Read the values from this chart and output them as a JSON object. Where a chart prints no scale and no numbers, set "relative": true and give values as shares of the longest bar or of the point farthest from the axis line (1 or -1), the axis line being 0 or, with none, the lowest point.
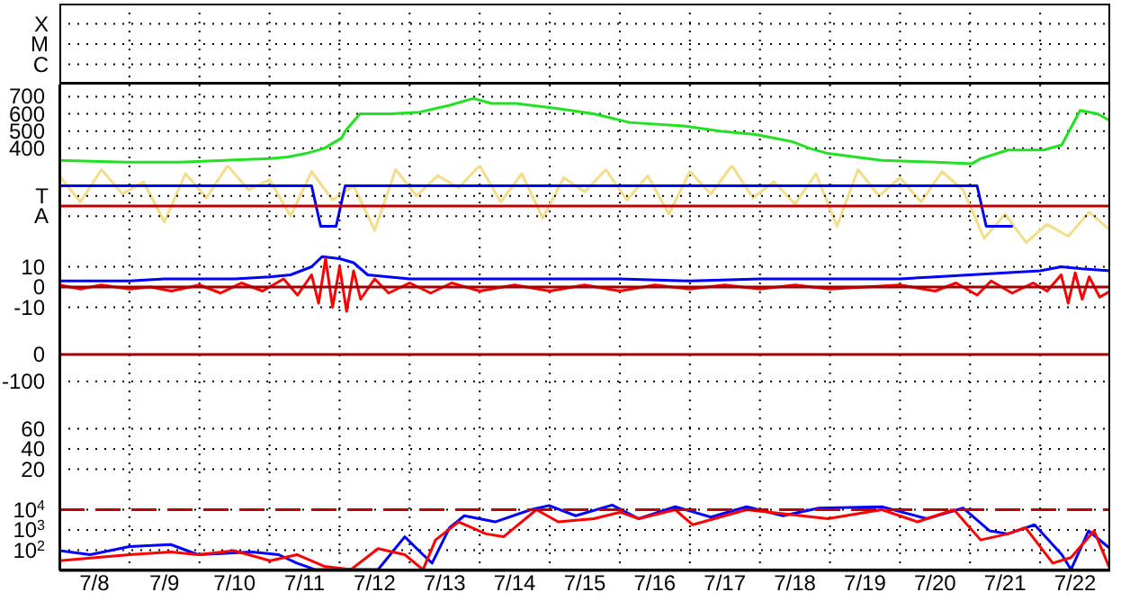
{
  "chart_data": [
    {
      "type": "other",
      "annotations": [
        "X",
        "M",
        "C"
      ]
    },
    {
      "type": "line",
      "xlim": [
        "--07-08",
        "--07-23"
      ],
      "xticks": [
        {
          "value": "--07-08T12:00",
          "label": "7/8"
        },
        {
          "value": "--07-09",
          "label": null
        },
        {
          "value": "--07-09T12:00",
          "label": "7/9"
        },
        {
          "value": "--07-10",
          "label": null
        },
        {
          "value": "--07-10T12:00",
          "label": "7/10"
        },
        {
          "value": "--07-11",
          "label": null
        },
        {
          "value": "--07-11T12:00",
          "label": "7/11"
        },
        {
          "value": "--07-12",
          "label": null
        },
        {
          "value": "--07-12T12:00",
          "label": "7/12"
        },
        {
          "value": "--07-13",
          "label": null
        },
        {
          "value": "--07-13T12:00",
          "label": "7/13"
        },
        {
          "value": "--07-14",
          "label": null
        },
        {
          "value": "--07-14T12:00",
          "label": "7/14"
        },
        {
          "value": "--07-15",
          "label": null
        },
        {
          "value": "--07-15T12:00",
          "label": "7/15"
        },
        {
          "value": "--07-16",
          "label": null
        },
        {
          "value": "--07-16T12:00",
          "label": "7/16"
        },
        {
          "value": "--07-17",
          "label": null
        },
        {
          "value": "--07-17T12:00",
          "label": "7/17"
        },
        {
          "value": "--07-18",
          "label": null
        },
        {
          "value": "--07-18T12:00",
          "label": "7/18"
        },
        {
          "value": "--07-19",
          "label": null
        },
        {
          "value": "--07-19T12:00",
          "label": "7/19"
        },
        {
          "value": "--07-20",
          "label": null
        },
        {
          "value": "--07-20T12:00",
          "label": "7/20"
        },
        {
          "value": "--07-21",
          "label": null
        },
        {
          "value": "--07-21T12:00",
          "label": "7/21"
        },
        {
          "value": "--07-22",
          "label": null
        },
        {
          "value": "--07-22T12:00",
          "label": "7/22"
        }
      ],
      "ylim": [
        300,
        770
      ],
      "yticks": [
        400,
        500,
        600,
        700
      ],
      "grid": true,
      "tick_labels": "y",
      "series": [
        {
          "color": "#22e022",
          "x": [
            "--07-08T00:00",
            "--07-08T22:48",
            "--07-09T17:17",
            "--07-11T00:14",
            "--07-11T06:14",
            "--07-11T12:29",
            "--07-11T18:43",
            "--07-12T00:43",
            "--07-12T01:55",
            "--07-12T06:58",
            "--07-12T17:31",
            "--07-13T03:22",
            "--07-13T13:41",
            "--07-13T21:50",
            "--07-14T04:05",
            "--07-14T12:29",
            "--07-15T02:53",
            "--07-15T15:07",
            "--07-16T03:22",
            "--07-16T21:50",
            "--07-17T10:19",
            "--07-17T22:34",
            "--07-18T10:48",
            "--07-18T17:02",
            "--07-18T23:17",
            "--07-19T17:46",
            "--07-20T12:14",
            "--07-21T00:29",
            "--07-21T03:36",
            "--07-21T12:58",
            "--07-22T01:12",
            "--07-22T07:26",
            "--07-22T13:41",
            "--07-22T19:41",
            "--07-23T00:00"
          ],
          "values": [
            330,
            320,
            320,
            340,
            350,
            370,
            400,
            460,
            500,
            600,
            600,
            610,
            650,
            690,
            660,
            660,
            630,
            600,
            550,
            530,
            500,
            480,
            440,
            400,
            370,
            330,
            320,
            310,
            340,
            390,
            390,
            420,
            620,
            600,
            560
          ]
        }
      ]
    },
    {
      "type": "line",
      "relative": true,
      "annotations": [
        "T",
        "A"
      ],
      "xlim": [
        "--07-08",
        "--07-23"
      ],
      "xticks": [
        {
          "value": "--07-08T12:00",
          "label": "7/8"
        },
        {
          "value": "--07-09",
          "label": null
        },
        {
          "value": "--07-09T12:00",
          "label": "7/9"
        },
        {
          "value": "--07-10",
          "label": null
        },
        {
          "value": "--07-10T12:00",
          "label": "7/10"
        },
        {
          "value": "--07-11",
          "label": null
        },
        {
          "value": "--07-11T12:00",
          "label": "7/11"
        },
        {
          "value": "--07-12",
          "label": null
        },
        {
          "value": "--07-12T12:00",
          "label": "7/12"
        },
        {
          "value": "--07-13",
          "label": null
        },
        {
          "value": "--07-13T12:00",
          "label": "7/13"
        },
        {
          "value": "--07-14",
          "label": null
        },
        {
          "value": "--07-14T12:00",
          "label": "7/14"
        },
        {
          "value": "--07-15",
          "label": null
        },
        {
          "value": "--07-15T12:00",
          "label": "7/15"
        },
        {
          "value": "--07-16",
          "label": null
        },
        {
          "value": "--07-16T12:00",
          "label": "7/16"
        },
        {
          "value": "--07-17",
          "label": null
        },
        {
          "value": "--07-17T12:00",
          "label": "7/17"
        },
        {
          "value": "--07-18",
          "label": null
        },
        {
          "value": "--07-18T12:00",
          "label": "7/18"
        },
        {
          "value": "--07-19",
          "label": null
        },
        {
          "value": "--07-19T12:00",
          "label": "7/19"
        },
        {
          "value": "--07-20",
          "label": null
        },
        {
          "value": "--07-20T12:00",
          "label": "7/20"
        },
        {
          "value": "--07-21",
          "label": null
        },
        {
          "value": "--07-21T12:00",
          "label": "7/21"
        },
        {
          "value": "--07-22",
          "label": null
        },
        {
          "value": "--07-22T12:00",
          "label": "7/22"
        }
      ],
      "grid": "x",
      "tick_labels": false,
      "ref_lines": [
        {
          "axis": "y",
          "value": 0,
          "color": "#c00000"
        }
      ],
      "series": [
        {
          "color": "#f2de8a",
          "x": [
            "--07-08T00:00",
            "--07-08T07:12",
            "--07-08T14:24",
            "--07-08T21:36",
            "--07-09T04:48",
            "--07-09T12:00",
            "--07-09T19:12",
            "--07-10T02:24",
            "--07-10T09:36",
            "--07-10T16:48",
            "--07-11T00:00",
            "--07-11T07:12",
            "--07-11T14:24",
            "--07-11T21:36",
            "--07-12T04:48",
            "--07-12T12:00",
            "--07-12T19:12",
            "--07-13T02:24",
            "--07-13T09:36",
            "--07-13T16:48",
            "--07-14T00:00",
            "--07-14T07:12",
            "--07-14T14:24",
            "--07-14T21:36",
            "--07-15T04:48",
            "--07-15T12:00",
            "--07-15T19:12",
            "--07-16T02:24",
            "--07-16T09:36",
            "--07-16T16:48",
            "--07-17T00:00",
            "--07-17T07:12",
            "--07-17T14:24",
            "--07-17T21:36",
            "--07-18T04:48",
            "--07-18T12:00",
            "--07-18T19:12",
            "--07-19T02:24",
            "--07-19T09:36",
            "--07-19T16:48",
            "--07-20T00:00",
            "--07-20T07:12",
            "--07-20T14:24",
            "--07-20T21:36",
            "--07-21T04:48",
            "--07-21T12:00",
            "--07-21T19:12",
            "--07-22T02:24",
            "--07-22T09:36",
            "--07-22T16:48",
            "--07-23T00:00"
          ],
          "values": [
            0.75,
            0.1,
            0.9,
            0.3,
            0.6,
            -0.4,
            0.8,
            0.2,
            1,
            0.4,
            0.65,
            -0.25,
            0.85,
            0.15,
            0.5,
            -0.6,
            0.9,
            0.25,
            0.75,
            0.45,
            1,
            0.1,
            0.8,
            -0.3,
            0.7,
            0.35,
            0.9,
            0.15,
            0.75,
            -0.2,
            0.85,
            0.3,
            1,
            0.2,
            0.6,
            0.05,
            0.8,
            -0.5,
            0.9,
            0.25,
            0.7,
            0.1,
            0.85,
            0.4,
            -0.8,
            -0.2,
            -0.9,
            -0.45,
            -0.75,
            -0.15,
            -0.6
          ]
        },
        {
          "color": "#0000ff",
          "x": [
            "--07-08T00:00",
            "--07-11T14:24",
            "--07-11T17:31",
            "--07-11T22:48",
            "--07-12T01:55",
            "--07-21T02:24",
            "--07-21T05:31",
            "--07-21T14:38"
          ],
          "values": [
            0.5,
            0.5,
            -0.5,
            -0.5,
            0.5,
            0.5,
            -0.5,
            -0.5
          ]
        }
      ]
    },
    {
      "type": "line",
      "xlim": [
        "--07-08",
        "--07-23"
      ],
      "xticks": [
        {
          "value": "--07-08T12:00",
          "label": "7/8"
        },
        {
          "value": "--07-09",
          "label": null
        },
        {
          "value": "--07-09T12:00",
          "label": "7/9"
        },
        {
          "value": "--07-10",
          "label": null
        },
        {
          "value": "--07-10T12:00",
          "label": "7/10"
        },
        {
          "value": "--07-11",
          "label": null
        },
        {
          "value": "--07-11T12:00",
          "label": "7/11"
        },
        {
          "value": "--07-12",
          "label": null
        },
        {
          "value": "--07-12T12:00",
          "label": "7/12"
        },
        {
          "value": "--07-13",
          "label": null
        },
        {
          "value": "--07-13T12:00",
          "label": "7/13"
        },
        {
          "value": "--07-14",
          "label": null
        },
        {
          "value": "--07-14T12:00",
          "label": "7/14"
        },
        {
          "value": "--07-15",
          "label": null
        },
        {
          "value": "--07-15T12:00",
          "label": "7/15"
        },
        {
          "value": "--07-16",
          "label": null
        },
        {
          "value": "--07-16T12:00",
          "label": "7/16"
        },
        {
          "value": "--07-17",
          "label": null
        },
        {
          "value": "--07-17T12:00",
          "label": "7/17"
        },
        {
          "value": "--07-18",
          "label": null
        },
        {
          "value": "--07-18T12:00",
          "label": "7/18"
        },
        {
          "value": "--07-19",
          "label": null
        },
        {
          "value": "--07-19T12:00",
          "label": "7/19"
        },
        {
          "value": "--07-20",
          "label": null
        },
        {
          "value": "--07-20T12:00",
          "label": "7/20"
        },
        {
          "value": "--07-21",
          "label": null
        },
        {
          "value": "--07-21T12:00",
          "label": "7/21"
        },
        {
          "value": "--07-22",
          "label": null
        },
        {
          "value": "--07-22T12:00",
          "label": "7/22"
        }
      ],
      "ylim": [
        -20,
        20
      ],
      "yticks": [
        10,
        0,
        -10
      ],
      "grid": true,
      "tick_labels": "y",
      "ref_lines": [
        {
          "axis": "y",
          "value": 0,
          "color": "#a00000"
        }
      ],
      "series": [
        {
          "color": "#0000ff",
          "x": [
            "--07-08T00:00",
            "--07-09T00:00",
            "--07-09T12:00",
            "--07-10T00:00",
            "--07-10T12:00",
            "--07-11T00:00",
            "--07-11T07:12",
            "--07-11T14:24",
            "--07-11T18:00",
            "--07-12T00:00",
            "--07-12T04:48",
            "--07-12T09:36",
            "--07-13T00:00",
            "--07-14T00:00",
            "--07-15T00:00",
            "--07-16T00:00",
            "--07-17T00:00",
            "--07-18T00:00",
            "--07-19T00:00",
            "--07-20T00:00",
            "--07-20T12:00",
            "--07-21T00:00",
            "--07-21T12:00",
            "--07-22T00:00",
            "--07-22T07:12",
            "--07-22T14:24",
            "--07-23T00:00"
          ],
          "values": [
            3,
            3,
            4,
            4,
            4,
            5,
            6,
            10,
            15,
            14,
            12,
            6,
            4,
            4,
            4,
            4,
            3,
            4,
            4,
            4,
            5,
            6,
            7,
            8,
            10,
            9,
            8
          ]
        },
        {
          "color": "#ff0000",
          "x": [
            "--07-08T00:00",
            "--07-08T07:12",
            "--07-08T14:24",
            "--07-09T00:00",
            "--07-09T07:12",
            "--07-09T14:24",
            "--07-10T00:00",
            "--07-10T07:12",
            "--07-10T14:24",
            "--07-10T21:36",
            "--07-11T04:48",
            "--07-11T09:36",
            "--07-11T14:24",
            "--07-11T16:48",
            "--07-11T19:12",
            "--07-11T21:36",
            "--07-12T00:00",
            "--07-12T02:24",
            "--07-12T04:48",
            "--07-12T07:12",
            "--07-12T12:00",
            "--07-12T16:48",
            "--07-13T00:00",
            "--07-13T07:12",
            "--07-13T14:24",
            "--07-14T00:00",
            "--07-14T12:00",
            "--07-15T00:00",
            "--07-15T12:00",
            "--07-16T00:00",
            "--07-16T12:00",
            "--07-17T00:00",
            "--07-17T12:00",
            "--07-18T00:00",
            "--07-18T12:00",
            "--07-19T00:00",
            "--07-19T12:00",
            "--07-20T00:00",
            "--07-20T12:00",
            "--07-20T19:12",
            "--07-21T02:24",
            "--07-21T07:12",
            "--07-21T14:24",
            "--07-21T21:36",
            "--07-22T02:24",
            "--07-22T07:12",
            "--07-22T09:36",
            "--07-22T12:00",
            "--07-22T14:24",
            "--07-22T16:48",
            "--07-22T20:24",
            "--07-23T00:00"
          ],
          "values": [
            1,
            -1,
            1,
            -1,
            0,
            -2,
            1,
            -3,
            2,
            -2,
            4,
            -4,
            6,
            -8,
            14,
            -10,
            10,
            -12,
            8,
            -6,
            4,
            -3,
            2,
            -3,
            2,
            -2,
            1,
            -2,
            1,
            -2,
            1,
            -1,
            1,
            -1,
            1,
            -1,
            0,
            1,
            -2,
            2,
            -4,
            3,
            -3,
            2,
            -2,
            6,
            -8,
            7,
            -6,
            5,
            -5,
            -2
          ]
        }
      ]
    },
    {
      "type": "line",
      "xlim": [
        "--07-08",
        "--07-23"
      ],
      "xticks": [
        {
          "value": "--07-08T12:00",
          "label": "7/8"
        },
        {
          "value": "--07-09",
          "label": null
        },
        {
          "value": "--07-09T12:00",
          "label": "7/9"
        },
        {
          "value": "--07-10",
          "label": null
        },
        {
          "value": "--07-10T12:00",
          "label": "7/10"
        },
        {
          "value": "--07-11",
          "label": null
        },
        {
          "value": "--07-11T12:00",
          "label": "7/11"
        },
        {
          "value": "--07-12",
          "label": null
        },
        {
          "value": "--07-12T12:00",
          "label": "7/12"
        },
        {
          "value": "--07-13",
          "label": null
        },
        {
          "value": "--07-13T12:00",
          "label": "7/13"
        },
        {
          "value": "--07-14",
          "label": null
        },
        {
          "value": "--07-14T12:00",
          "label": "7/14"
        },
        {
          "value": "--07-15",
          "label": null
        },
        {
          "value": "--07-15T12:00",
          "label": "7/15"
        },
        {
          "value": "--07-16",
          "label": null
        },
        {
          "value": "--07-16T12:00",
          "label": "7/16"
        },
        {
          "value": "--07-17",
          "label": null
        },
        {
          "value": "--07-17T12:00",
          "label": "7/17"
        },
        {
          "value": "--07-18",
          "label": null
        },
        {
          "value": "--07-18T12:00",
          "label": "7/18"
        },
        {
          "value": "--07-19",
          "label": null
        },
        {
          "value": "--07-19T12:00",
          "label": "7/19"
        },
        {
          "value": "--07-20",
          "label": null
        },
        {
          "value": "--07-20T12:00",
          "label": "7/20"
        },
        {
          "value": "--07-21",
          "label": null
        },
        {
          "value": "--07-21T12:00",
          "label": "7/21"
        },
        {
          "value": "--07-22",
          "label": null
        },
        {
          "value": "--07-22T12:00",
          "label": "7/22"
        }
      ],
      "ylim": [
        -200,
        100
      ],
      "yticks": [
        0,
        -100
      ],
      "grid": true,
      "tick_labels": "y",
      "ref_lines": [
        {
          "axis": "y",
          "value": 0,
          "color": "#a00000"
        }
      ]
    },
    {
      "type": "line",
      "xlim": [
        "--07-08",
        "--07-23"
      ],
      "xticks": [
        {
          "value": "--07-08T12:00",
          "label": "7/8"
        },
        {
          "value": "--07-09",
          "label": null
        },
        {
          "value": "--07-09T12:00",
          "label": "7/9"
        },
        {
          "value": "--07-10",
          "label": null
        },
        {
          "value": "--07-10T12:00",
          "label": "7/10"
        },
        {
          "value": "--07-11",
          "label": null
        },
        {
          "value": "--07-11T12:00",
          "label": "7/11"
        },
        {
          "value": "--07-12",
          "label": null
        },
        {
          "value": "--07-12T12:00",
          "label": "7/12"
        },
        {
          "value": "--07-13",
          "label": null
        },
        {
          "value": "--07-13T12:00",
          "label": "7/13"
        },
        {
          "value": "--07-14",
          "label": null
        },
        {
          "value": "--07-14T12:00",
          "label": "7/14"
        },
        {
          "value": "--07-15",
          "label": null
        },
        {
          "value": "--07-15T12:00",
          "label": "7/15"
        },
        {
          "value": "--07-16",
          "label": null
        },
        {
          "value": "--07-16T12:00",
          "label": "7/16"
        },
        {
          "value": "--07-17",
          "label": null
        },
        {
          "value": "--07-17T12:00",
          "label": "7/17"
        },
        {
          "value": "--07-18",
          "label": null
        },
        {
          "value": "--07-18T12:00",
          "label": "7/18"
        },
        {
          "value": "--07-19",
          "label": null
        },
        {
          "value": "--07-19T12:00",
          "label": "7/19"
        },
        {
          "value": "--07-20",
          "label": null
        },
        {
          "value": "--07-20T12:00",
          "label": "7/20"
        },
        {
          "value": "--07-21",
          "label": null
        },
        {
          "value": "--07-21T12:00",
          "label": "7/21"
        },
        {
          "value": "--07-22",
          "label": null
        },
        {
          "value": "--07-22T12:00",
          "label": "7/22"
        }
      ],
      "ylim": [
        0,
        80
      ],
      "yticks": [
        60,
        40,
        20
      ],
      "grid": true,
      "tick_labels": "y"
    },
    {
      "type": "line",
      "xlim": [
        "--07-08",
        "--07-23"
      ],
      "xticks": [
        {
          "value": "--07-08T12:00",
          "label": "7/8"
        },
        {
          "value": "--07-09",
          "label": null
        },
        {
          "value": "--07-09T12:00",
          "label": "7/9"
        },
        {
          "value": "--07-10",
          "label": null
        },
        {
          "value": "--07-10T12:00",
          "label": "7/10"
        },
        {
          "value": "--07-11",
          "label": null
        },
        {
          "value": "--07-11T12:00",
          "label": "7/11"
        },
        {
          "value": "--07-12",
          "label": null
        },
        {
          "value": "--07-12T12:00",
          "label": "7/12"
        },
        {
          "value": "--07-13",
          "label": null
        },
        {
          "value": "--07-13T12:00",
          "label": "7/13"
        },
        {
          "value": "--07-14",
          "label": null
        },
        {
          "value": "--07-14T12:00",
          "label": "7/14"
        },
        {
          "value": "--07-15",
          "label": null
        },
        {
          "value": "--07-15T12:00",
          "label": "7/15"
        },
        {
          "value": "--07-16",
          "label": null
        },
        {
          "value": "--07-16T12:00",
          "label": "7/16"
        },
        {
          "value": "--07-17",
          "label": null
        },
        {
          "value": "--07-17T12:00",
          "label": "7/17"
        },
        {
          "value": "--07-18",
          "label": null
        },
        {
          "value": "--07-18T12:00",
          "label": "7/18"
        },
        {
          "value": "--07-19",
          "label": null
        },
        {
          "value": "--07-19T12:00",
          "label": "7/19"
        },
        {
          "value": "--07-20",
          "label": null
        },
        {
          "value": "--07-20T12:00",
          "label": "7/20"
        },
        {
          "value": "--07-21",
          "label": null
        },
        {
          "value": "--07-21T12:00",
          "label": "7/21"
        },
        {
          "value": "--07-22",
          "label": null
        },
        {
          "value": "--07-22T12:00",
          "label": "7/22"
        }
      ],
      "ylim": [
        10,
        100000
      ],
      "log": true,
      "yticks": [
        {
          "value": 10000,
          "label": "10$^{4}$"
        },
        {
          "value": 1000,
          "label": "10$^{3}$"
        },
        {
          "value": 100,
          "label": "10$^{2}$"
        }
      ],
      "grid": true,
      "ref_lines": [
        {
          "axis": "y",
          "value": 10000,
          "color": "#c00000",
          "line_style": "dashed"
        }
      ],
      "series": [
        {
          "color": "#0000ff",
          "x": [
            "--07-08T00:00",
            "--07-08T10:34",
            "--07-09T00:00",
            "--07-09T14:10",
            "--07-09T23:31",
            "--07-10T18:00",
            "--07-11T03:07",
            "--07-11T09:22",
            "--07-11T15:36",
            "--07-12T13:12",
            "--07-12T22:19",
            "--07-13T04:34",
            "--07-13T07:41",
            "--07-13T13:41",
            "--07-13T18:43",
            "--07-14T05:17",
            "--07-14T17:31",
            "--07-14T23:46",
            "--07-15T08:53",
            "--07-15T21:22",
            "--07-16T06:29",
            "--07-16T18:58",
            "--07-17T07:12",
            "--07-17T19:26",
            "--07-18T07:55",
            "--07-18T20:10",
            "--07-19T17:46",
            "--07-20T09:07",
            "--07-20T21:36",
            "--07-21T06:43",
            "--07-21T12:58",
            "--07-21T22:05",
            "--07-22T07:26",
            "--07-22T10:34",
            "--07-22T16:34",
            "--07-23T00:00"
          ],
          "values": [
            95,
            60,
            150,
            190,
            60,
            82,
            60,
            23,
            11,
            11,
            460,
            60,
            23,
            1300,
            5000,
            2500,
            10000,
            16000,
            5000,
            17000,
            3600,
            14000,
            4300,
            14000,
            5000,
            12000,
            14000,
            3600,
            12000,
            900,
            640,
            1800,
            60,
            11,
            900,
            120
          ]
        },
        {
          "color": "#ff0000",
          "x": [
            "--07-08T00:00",
            "--07-09T00:00",
            "--07-09T14:10",
            "--07-09T23:31",
            "--07-10T11:46",
            "--07-11T00:14",
            "--07-11T09:22",
            "--07-11T18:43",
            "--07-12T03:50",
            "--07-12T13:12",
            "--07-12T22:19",
            "--07-13T04:34",
            "--07-13T08:53",
            "--07-13T16:48",
            "--07-14T02:10",
            "--07-14T08:10",
            "--07-14T19:26",
            "--07-15T02:53",
            "--07-15T15:07",
            "--07-16T00:14",
            "--07-16T06:29",
            "--07-16T18:58",
            "--07-17T00:58",
            "--07-17T19:26",
            "--07-18T23:17",
            "--07-19T17:46",
            "--07-20T06:00",
            "--07-20T18:29",
            "--07-21T03:36",
            "--07-21T12:58",
            "--07-21T18:58",
            "--07-22T04:19",
            "--07-22T10:34",
            "--07-22T18:29",
            "--07-23T00:00"
          ],
          "values": [
            30,
            60,
            82,
            60,
            95,
            30,
            60,
            16,
            11,
            120,
            60,
            11,
            320,
            2500,
            640,
            460,
            10000,
            2500,
            3600,
            7500,
            3600,
            10000,
            1800,
            10000,
            3600,
            10000,
            2500,
            10000,
            320,
            640,
            1300,
            23,
            43,
            900,
            11
          ]
        }
      ]
    }
  ]
}
